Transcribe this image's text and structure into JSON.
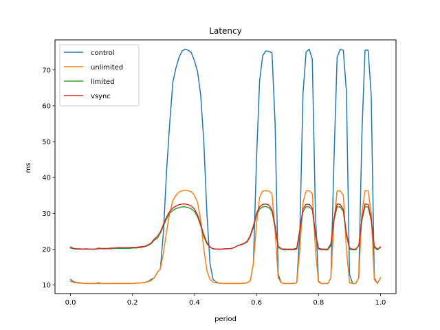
{
  "chart_data": {
    "type": "line",
    "title": "Latency",
    "xlabel": "period",
    "ylabel": "ms",
    "xlim": [
      -0.05,
      1.05
    ],
    "ylim": [
      7.6,
      78.4
    ],
    "xticks": [
      0.0,
      0.2,
      0.4,
      0.6,
      0.8,
      1.0
    ],
    "xtick_labels": [
      "0.0",
      "0.2",
      "0.4",
      "0.6",
      "0.8",
      "1.0"
    ],
    "yticks": [
      10,
      20,
      30,
      40,
      50,
      60,
      70
    ],
    "ytick_labels": [
      "10",
      "20",
      "30",
      "40",
      "50",
      "60",
      "70"
    ],
    "grid": false,
    "legend_position": "top-left",
    "series": [
      {
        "name": "control",
        "color": "#1f77b4",
        "x": [
          0.0,
          0.01,
          0.02,
          0.03,
          0.04,
          0.05,
          0.06,
          0.07,
          0.08,
          0.09,
          0.1,
          0.11,
          0.12,
          0.13,
          0.14,
          0.15,
          0.16,
          0.17,
          0.18,
          0.19,
          0.2,
          0.21,
          0.22,
          0.23,
          0.24,
          0.25,
          0.26,
          0.27,
          0.28,
          0.29,
          0.3,
          0.31,
          0.32,
          0.33,
          0.34,
          0.35,
          0.36,
          0.37,
          0.38,
          0.39,
          0.4,
          0.41,
          0.42,
          0.43,
          0.44,
          0.45,
          0.46,
          0.47,
          0.48,
          0.49,
          0.5,
          0.51,
          0.52,
          0.53,
          0.54,
          0.55,
          0.56,
          0.57,
          0.58,
          0.59,
          0.6,
          0.61,
          0.62,
          0.63,
          0.64,
          0.65,
          0.66,
          0.67,
          0.68,
          0.69,
          0.7,
          0.71,
          0.72,
          0.73,
          0.74,
          0.75,
          0.76,
          0.77,
          0.78,
          0.79,
          0.8,
          0.81,
          0.82,
          0.83,
          0.84,
          0.85,
          0.86,
          0.87,
          0.88,
          0.89,
          0.9,
          0.91,
          0.92,
          0.93,
          0.94,
          0.95,
          0.96,
          0.97,
          0.98,
          0.99,
          1.0
        ],
        "y": [
          11.5,
          10.9,
          10.7,
          10.6,
          10.5,
          10.4,
          10.4,
          10.4,
          10.4,
          10.6,
          10.4,
          10.4,
          10.4,
          10.4,
          10.4,
          10.4,
          10.4,
          10.4,
          10.4,
          10.4,
          10.4,
          10.5,
          10.5,
          10.6,
          10.7,
          11.0,
          11.5,
          12.0,
          13.5,
          14.5,
          25.0,
          42.0,
          55.0,
          66.5,
          70.5,
          73.5,
          75.3,
          75.8,
          75.5,
          74.8,
          72.5,
          69.5,
          63.0,
          50.0,
          30.0,
          16.0,
          11.5,
          10.8,
          10.5,
          10.4,
          10.4,
          10.4,
          10.4,
          10.4,
          10.4,
          10.4,
          10.5,
          10.6,
          11.2,
          16.0,
          45.0,
          67.0,
          74.0,
          75.3,
          75.2,
          74.8,
          55.0,
          13.0,
          10.6,
          10.4,
          10.4,
          10.4,
          10.4,
          10.6,
          25.0,
          63.5,
          75.0,
          75.8,
          73.0,
          30.0,
          11.0,
          10.4,
          10.4,
          10.4,
          12.0,
          45.0,
          73.5,
          75.8,
          75.5,
          64.0,
          13.0,
          10.4,
          10.4,
          12.0,
          52.0,
          75.5,
          75.6,
          63.0,
          12.0,
          10.4,
          12.0
        ]
      },
      {
        "name": "unlimited",
        "color": "#ff7f0e",
        "x": [
          0.0,
          0.01,
          0.02,
          0.03,
          0.04,
          0.05,
          0.06,
          0.07,
          0.08,
          0.09,
          0.1,
          0.11,
          0.12,
          0.13,
          0.14,
          0.15,
          0.16,
          0.17,
          0.18,
          0.19,
          0.2,
          0.21,
          0.22,
          0.23,
          0.24,
          0.25,
          0.26,
          0.27,
          0.28,
          0.29,
          0.3,
          0.31,
          0.32,
          0.33,
          0.34,
          0.35,
          0.36,
          0.37,
          0.38,
          0.39,
          0.4,
          0.41,
          0.42,
          0.43,
          0.44,
          0.45,
          0.46,
          0.47,
          0.48,
          0.49,
          0.5,
          0.51,
          0.52,
          0.53,
          0.54,
          0.55,
          0.56,
          0.57,
          0.58,
          0.59,
          0.6,
          0.61,
          0.62,
          0.63,
          0.64,
          0.65,
          0.66,
          0.67,
          0.68,
          0.69,
          0.7,
          0.71,
          0.72,
          0.73,
          0.74,
          0.75,
          0.76,
          0.77,
          0.78,
          0.79,
          0.8,
          0.81,
          0.82,
          0.83,
          0.84,
          0.85,
          0.86,
          0.87,
          0.88,
          0.89,
          0.9,
          0.91,
          0.92,
          0.93,
          0.94,
          0.95,
          0.96,
          0.97,
          0.98,
          0.99,
          1.0
        ],
        "y": [
          11.0,
          10.7,
          10.6,
          10.5,
          10.5,
          10.4,
          10.4,
          10.4,
          10.4,
          10.4,
          10.4,
          10.4,
          10.4,
          10.4,
          10.4,
          10.4,
          10.4,
          10.4,
          10.4,
          10.4,
          10.4,
          10.5,
          10.5,
          10.6,
          10.7,
          10.9,
          11.2,
          12.0,
          13.5,
          14.5,
          19.0,
          25.0,
          30.0,
          33.5,
          35.0,
          35.9,
          36.3,
          36.4,
          36.3,
          36.0,
          35.0,
          33.0,
          28.0,
          20.0,
          14.0,
          11.5,
          10.8,
          10.6,
          10.5,
          10.4,
          10.4,
          10.4,
          10.4,
          10.4,
          10.4,
          10.4,
          10.5,
          10.6,
          11.2,
          16.0,
          27.0,
          34.5,
          36.2,
          36.3,
          36.2,
          35.5,
          25.0,
          12.0,
          10.6,
          10.4,
          10.4,
          10.4,
          10.4,
          10.6,
          20.0,
          33.0,
          36.2,
          36.3,
          35.5,
          20.0,
          10.8,
          10.4,
          10.4,
          10.4,
          12.0,
          28.0,
          36.2,
          36.3,
          35.0,
          20.0,
          10.6,
          10.4,
          10.4,
          12.0,
          30.0,
          36.3,
          36.3,
          30.0,
          11.5,
          10.4,
          12.0
        ]
      },
      {
        "name": "limited",
        "color": "#2ca02c",
        "x": [
          0.0,
          0.01,
          0.02,
          0.03,
          0.04,
          0.05,
          0.06,
          0.07,
          0.08,
          0.09,
          0.1,
          0.11,
          0.12,
          0.13,
          0.14,
          0.15,
          0.16,
          0.17,
          0.18,
          0.19,
          0.2,
          0.21,
          0.22,
          0.23,
          0.24,
          0.25,
          0.26,
          0.27,
          0.28,
          0.29,
          0.3,
          0.31,
          0.32,
          0.33,
          0.34,
          0.35,
          0.36,
          0.37,
          0.38,
          0.39,
          0.4,
          0.41,
          0.42,
          0.43,
          0.44,
          0.45,
          0.46,
          0.47,
          0.48,
          0.49,
          0.5,
          0.51,
          0.52,
          0.53,
          0.54,
          0.55,
          0.56,
          0.57,
          0.58,
          0.59,
          0.6,
          0.61,
          0.62,
          0.63,
          0.64,
          0.65,
          0.66,
          0.67,
          0.68,
          0.69,
          0.7,
          0.71,
          0.72,
          0.73,
          0.74,
          0.75,
          0.76,
          0.77,
          0.78,
          0.79,
          0.8,
          0.81,
          0.82,
          0.83,
          0.84,
          0.85,
          0.86,
          0.87,
          0.88,
          0.89,
          0.9,
          0.91,
          0.92,
          0.93,
          0.94,
          0.95,
          0.96,
          0.97,
          0.98,
          0.99,
          1.0
        ],
        "y": [
          20.3,
          20.1,
          20.0,
          20.0,
          20.0,
          20.0,
          20.0,
          20.0,
          20.0,
          20.1,
          20.1,
          20.1,
          20.1,
          20.1,
          20.2,
          20.2,
          20.2,
          20.2,
          20.2,
          20.2,
          20.3,
          20.3,
          20.4,
          20.5,
          20.7,
          21.0,
          21.5,
          22.5,
          23.0,
          24.5,
          26.5,
          28.5,
          30.0,
          30.8,
          31.3,
          31.6,
          31.8,
          31.8,
          31.6,
          31.2,
          30.5,
          29.0,
          26.5,
          23.5,
          21.5,
          20.5,
          20.1,
          20.0,
          20.0,
          20.0,
          20.1,
          20.1,
          20.2,
          20.5,
          21.0,
          21.2,
          21.5,
          22.0,
          23.5,
          26.0,
          29.5,
          31.2,
          31.8,
          31.9,
          31.6,
          30.5,
          26.0,
          20.5,
          20.0,
          19.8,
          19.8,
          19.8,
          19.8,
          20.0,
          25.0,
          30.5,
          31.8,
          31.8,
          31.0,
          24.0,
          20.0,
          19.8,
          19.8,
          19.8,
          21.0,
          28.0,
          31.8,
          31.8,
          30.5,
          24.0,
          20.0,
          19.8,
          19.8,
          21.0,
          28.0,
          31.8,
          31.8,
          28.0,
          20.5,
          19.8,
          20.5
        ]
      },
      {
        "name": "vsync",
        "color": "#d62728",
        "x": [
          0.0,
          0.01,
          0.02,
          0.03,
          0.04,
          0.05,
          0.06,
          0.07,
          0.08,
          0.09,
          0.1,
          0.11,
          0.12,
          0.13,
          0.14,
          0.15,
          0.16,
          0.17,
          0.18,
          0.19,
          0.2,
          0.21,
          0.22,
          0.23,
          0.24,
          0.25,
          0.26,
          0.27,
          0.28,
          0.29,
          0.3,
          0.31,
          0.32,
          0.33,
          0.34,
          0.35,
          0.36,
          0.37,
          0.38,
          0.39,
          0.4,
          0.41,
          0.42,
          0.43,
          0.44,
          0.45,
          0.46,
          0.47,
          0.48,
          0.49,
          0.5,
          0.51,
          0.52,
          0.53,
          0.54,
          0.55,
          0.56,
          0.57,
          0.58,
          0.59,
          0.6,
          0.61,
          0.62,
          0.63,
          0.64,
          0.65,
          0.66,
          0.67,
          0.68,
          0.69,
          0.7,
          0.71,
          0.72,
          0.73,
          0.74,
          0.75,
          0.76,
          0.77,
          0.78,
          0.79,
          0.8,
          0.81,
          0.82,
          0.83,
          0.84,
          0.85,
          0.86,
          0.87,
          0.88,
          0.89,
          0.9,
          0.91,
          0.92,
          0.93,
          0.94,
          0.95,
          0.96,
          0.97,
          0.98,
          0.99,
          1.0
        ],
        "y": [
          20.6,
          20.2,
          20.1,
          20.1,
          20.0,
          20.1,
          20.0,
          20.0,
          20.0,
          20.3,
          20.2,
          20.2,
          20.2,
          20.3,
          20.3,
          20.4,
          20.4,
          20.4,
          20.4,
          20.4,
          20.5,
          20.5,
          20.6,
          20.7,
          20.8,
          21.2,
          21.7,
          22.8,
          23.5,
          24.8,
          27.0,
          29.0,
          30.5,
          31.5,
          32.0,
          32.4,
          32.6,
          32.6,
          32.4,
          32.0,
          31.2,
          29.5,
          27.0,
          24.0,
          21.8,
          20.6,
          20.1,
          20.0,
          20.0,
          20.0,
          20.1,
          20.1,
          20.2,
          20.5,
          21.0,
          21.3,
          21.6,
          22.2,
          23.8,
          26.5,
          30.0,
          31.8,
          32.5,
          32.6,
          32.3,
          31.0,
          26.5,
          20.8,
          20.1,
          20.0,
          20.0,
          20.0,
          20.0,
          20.3,
          25.5,
          31.2,
          32.5,
          32.5,
          31.5,
          24.5,
          20.3,
          20.0,
          20.0,
          20.0,
          21.5,
          28.5,
          32.6,
          32.5,
          31.0,
          24.5,
          20.3,
          20.0,
          20.0,
          21.0,
          28.5,
          32.6,
          32.5,
          28.5,
          20.8,
          20.0,
          20.6
        ]
      }
    ]
  }
}
